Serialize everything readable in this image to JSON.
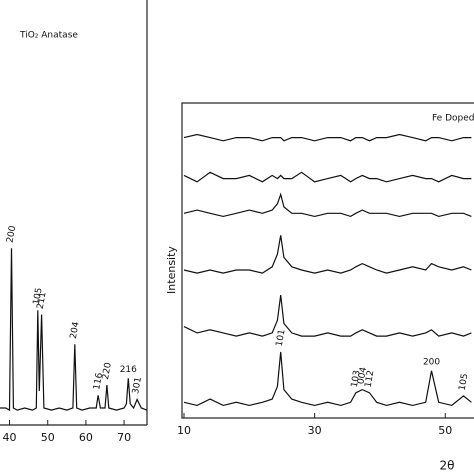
{
  "chart_data": [
    {
      "type": "line",
      "title": "TiO₂ Anatase",
      "x": [
        37.5,
        39,
        40,
        40.5,
        41,
        42,
        44,
        46,
        47,
        47.4,
        47.8,
        48.4,
        49,
        51,
        53,
        55,
        56.6,
        57.1,
        57.6,
        59,
        61,
        62.7,
        63.2,
        63.8,
        65,
        65.5,
        66,
        68,
        70,
        70.6,
        71.1,
        71.6,
        72.5,
        73.4,
        74.5,
        76
      ],
      "series": [
        {
          "color": "#111111",
          "values": [
            4,
            4,
            3.5,
            41.6,
            4,
            3.5,
            4,
            3.5,
            4,
            27,
            8,
            26,
            4,
            3.5,
            4,
            3.5,
            4,
            19,
            4,
            3.5,
            4,
            4,
            7,
            4,
            4,
            9.4,
            4,
            3.5,
            4,
            5,
            11,
            5,
            4,
            6,
            4,
            3.5
          ]
        }
      ],
      "xlim": [
        37.5,
        76
      ],
      "xticks": [
        40,
        50,
        60,
        70
      ],
      "ylim": [
        0,
        100
      ],
      "annotations": [
        {
          "text": "200",
          "x": 40.5,
          "rotated": true
        },
        {
          "text": "105",
          "x": 47.4,
          "rotated": true
        },
        {
          "text": "211",
          "x": 48.4,
          "rotated": true
        },
        {
          "text": "204",
          "x": 57.1,
          "rotated": true
        },
        {
          "text": "116",
          "x": 63.2,
          "rotated": true
        },
        {
          "text": "220",
          "x": 65.5,
          "rotated": true
        },
        {
          "text": "216",
          "x": 71.1,
          "rotated": false
        },
        {
          "text": "301",
          "x": 73.4,
          "rotated": true
        }
      ]
    },
    {
      "type": "line",
      "title": "Fe Doped",
      "xlabel": "2θ",
      "ylabel": "Intensity",
      "x": [
        10,
        12,
        14,
        16,
        18,
        20,
        22,
        23.5,
        24.3,
        24.8,
        25.3,
        26.5,
        28,
        30,
        32,
        34,
        35.5,
        36.3,
        37.3,
        38.4,
        39.5,
        41,
        43,
        45,
        47,
        47.9,
        49,
        51,
        52.8,
        54
      ],
      "series": [
        {
          "color": "#111111",
          "values": [
            5,
            4,
            6,
            4,
            5,
            4,
            5,
            6,
            10,
            21,
            9,
            6,
            5,
            4,
            5,
            4,
            5,
            8,
            9,
            8,
            5,
            4,
            5,
            4,
            5,
            15,
            5,
            4,
            7,
            5
          ]
        },
        {
          "color": "#111111",
          "values": [
            29,
            27,
            28,
            27,
            26,
            27,
            26,
            27,
            31,
            39,
            30,
            27,
            26,
            26,
            27,
            26,
            26,
            27,
            28,
            27,
            26,
            26,
            27,
            26,
            27,
            28,
            26,
            27,
            26,
            27
          ]
        },
        {
          "color": "#111111",
          "values": [
            47,
            46,
            47,
            46,
            47,
            47,
            46,
            48,
            52,
            58,
            51,
            48,
            47,
            46,
            47,
            46,
            47,
            48,
            49,
            48,
            47,
            46,
            47,
            48,
            47,
            49,
            48,
            47,
            48,
            47
          ]
        },
        {
          "color": "#111111",
          "values": [
            65,
            66,
            65,
            64,
            65,
            66,
            65,
            66,
            68,
            71,
            67,
            65,
            65,
            64,
            65,
            65,
            64,
            65,
            66,
            65,
            65,
            65,
            64,
            65,
            65,
            65,
            64,
            65,
            65,
            64
          ]
        },
        {
          "color": "#111111",
          "values": [
            77,
            75,
            78,
            76,
            76,
            77,
            75,
            77,
            76,
            77,
            76,
            76,
            78,
            75,
            76,
            77,
            75,
            76,
            77,
            76,
            76,
            75,
            76,
            77,
            76,
            76,
            75,
            77,
            76,
            76
          ]
        },
        {
          "color": "#111111",
          "values": [
            89,
            90,
            89,
            88,
            89,
            89,
            88,
            89,
            89,
            89,
            88,
            89,
            89,
            88,
            89,
            89,
            88,
            89,
            89,
            88,
            89,
            89,
            90,
            89,
            88,
            89,
            89,
            88,
            89,
            89
          ]
        }
      ],
      "xlim": [
        10,
        54.4
      ],
      "xticks": [
        10,
        30,
        50
      ],
      "ylim": [
        0,
        100
      ],
      "annotations": [
        {
          "text": "101",
          "x": 24.8,
          "rotated": true
        },
        {
          "text": "103",
          "x": 36.3,
          "rotated": true
        },
        {
          "text": "004",
          "x": 37.3,
          "rotated": true
        },
        {
          "text": "112",
          "x": 38.4,
          "rotated": true
        },
        {
          "text": "200",
          "x": 47.9,
          "rotated": false
        },
        {
          "text": "105",
          "x": 52.8,
          "rotated": true
        }
      ]
    }
  ]
}
